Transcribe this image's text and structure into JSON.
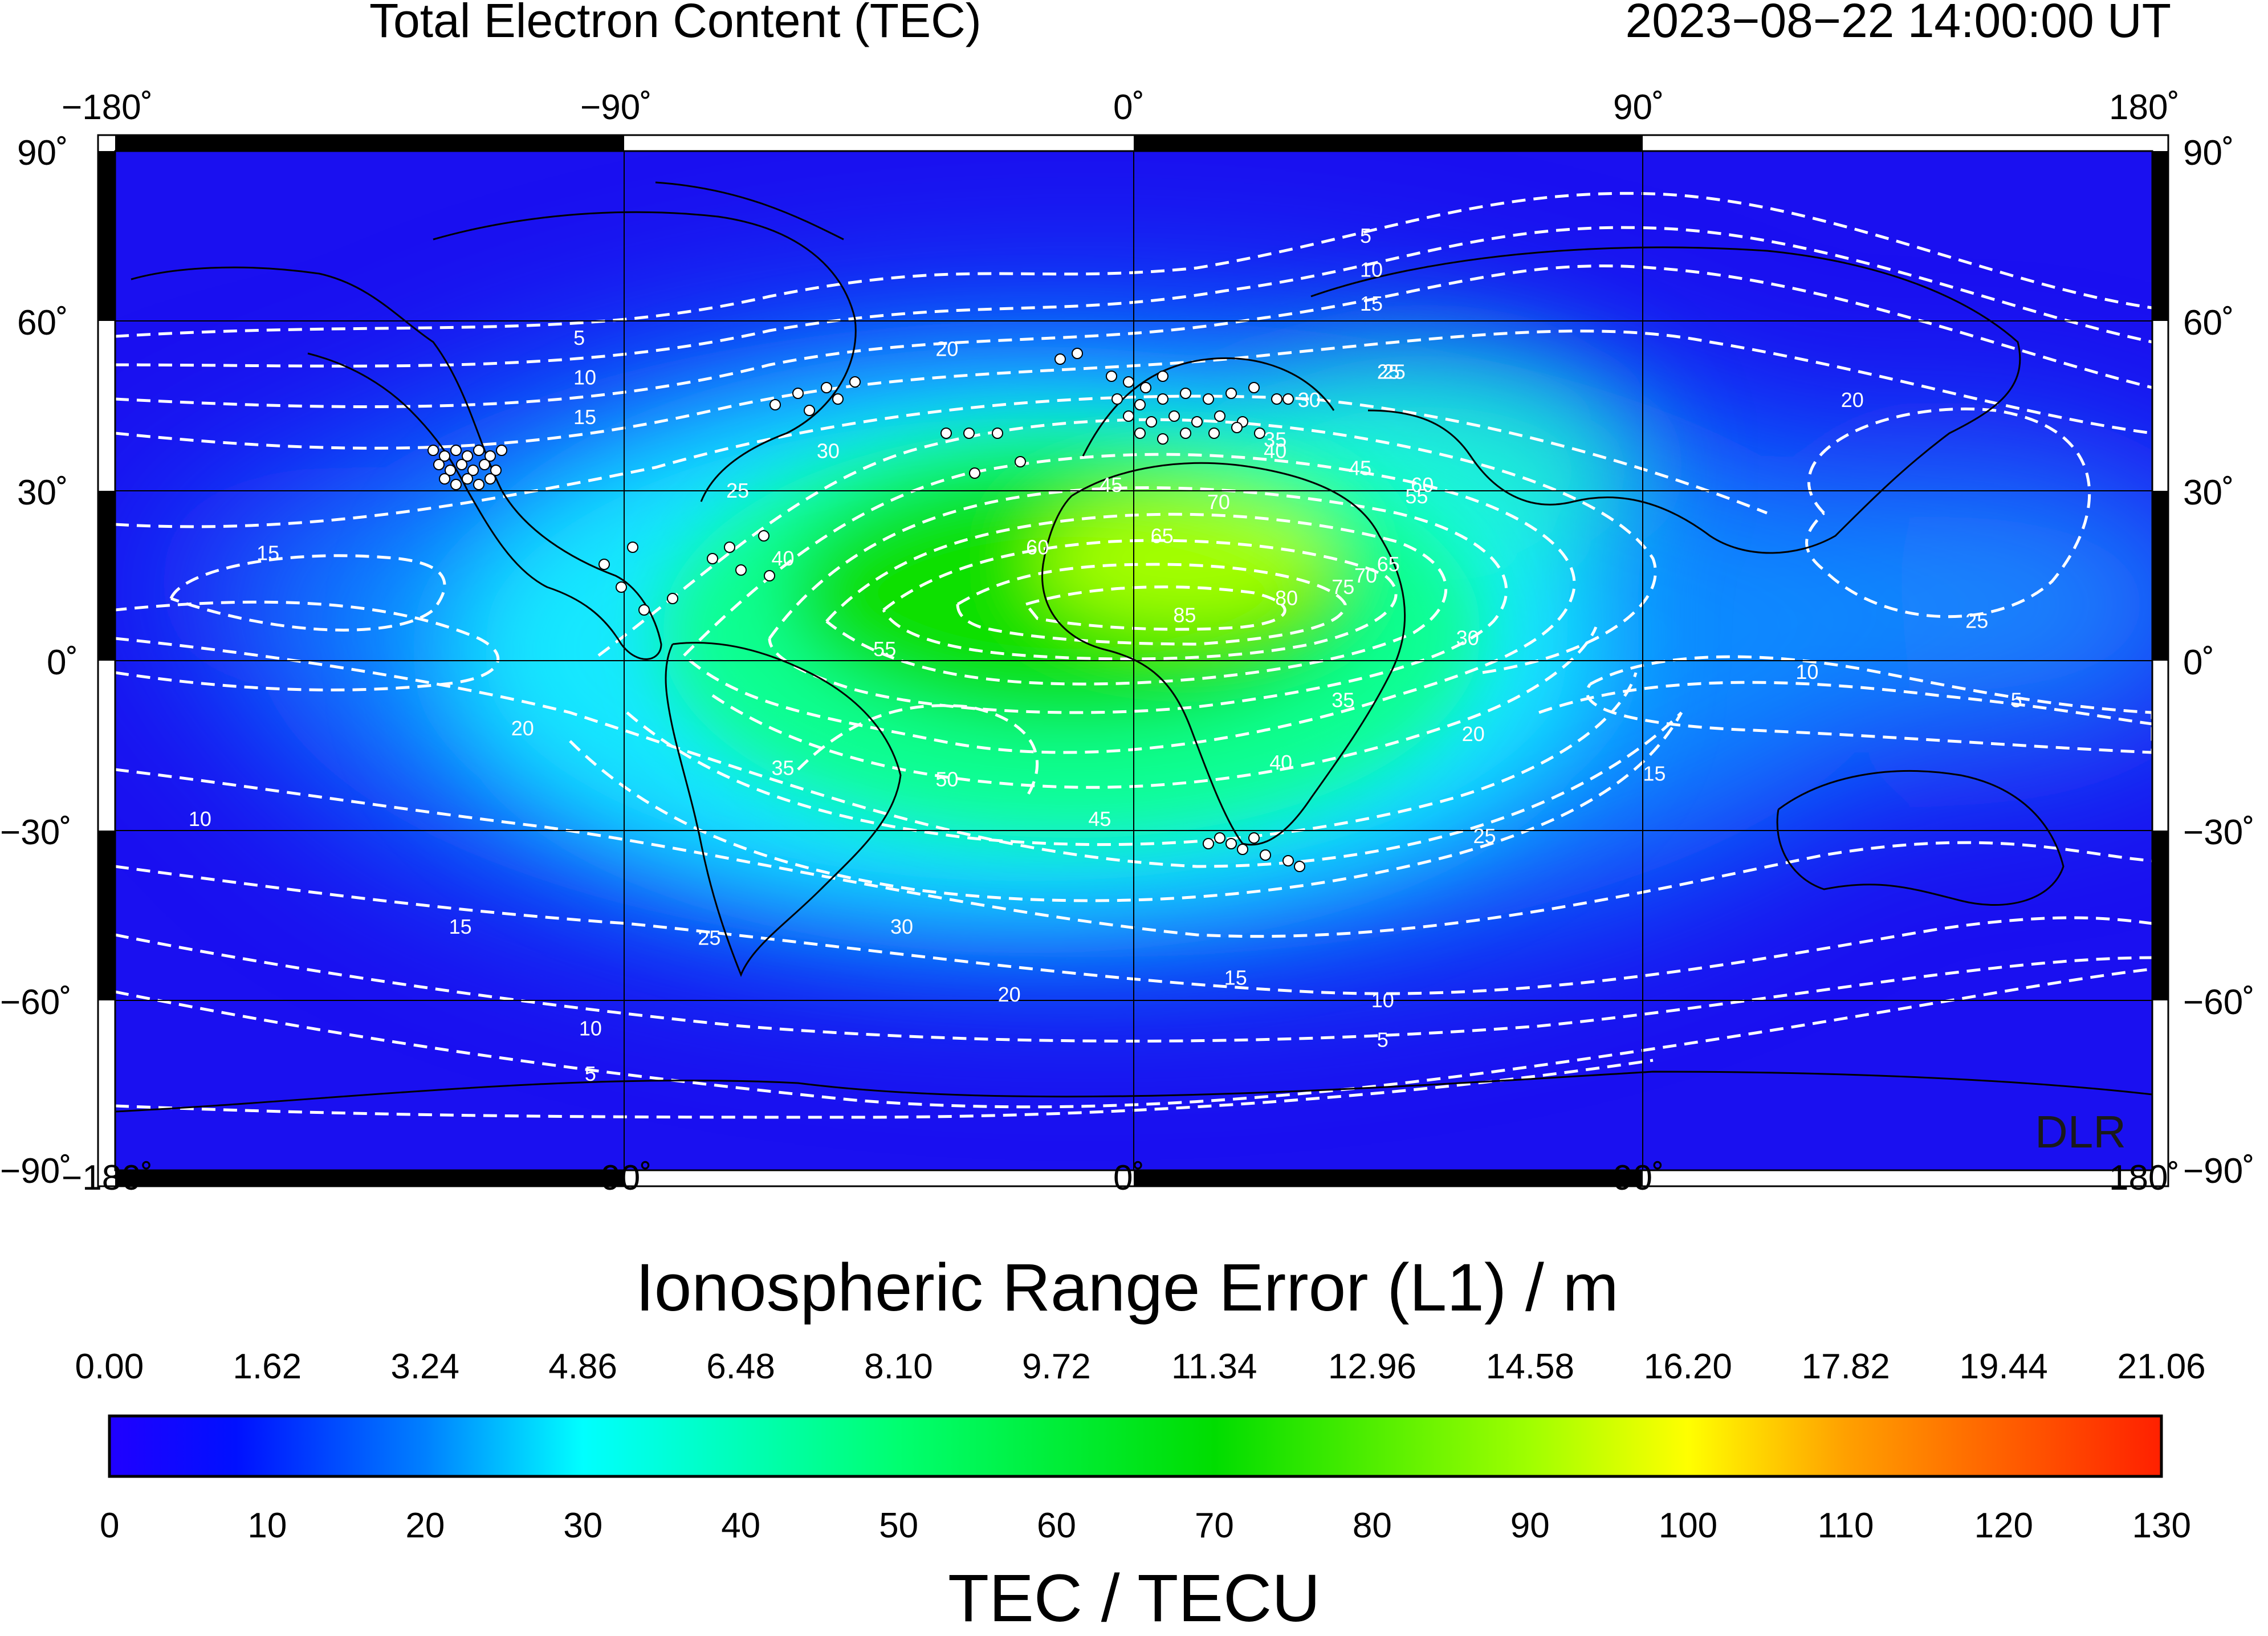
{
  "header": {
    "title": "Total Electron Content (TEC)",
    "timestamp": "2023−08−22  14:00:00 UT"
  },
  "map": {
    "lon_ticks": [
      "−180˚",
      "−90˚",
      "0˚",
      "90˚",
      "180˚"
    ],
    "lat_ticks": [
      "90˚",
      "60˚",
      "30˚",
      "0˚",
      "−30˚",
      "−60˚",
      "−90˚"
    ],
    "watermark": "DLR",
    "background_color": "#1a10f0",
    "contour_color": "#ffffff",
    "contour_labels": [
      {
        "text": "5",
        "lon": 41,
        "lat": 75
      },
      {
        "text": "10",
        "lon": 42,
        "lat": 69
      },
      {
        "text": "15",
        "lon": 42,
        "lat": 63
      },
      {
        "text": "20",
        "lon": -33,
        "lat": 55
      },
      {
        "text": "25",
        "lon": 46,
        "lat": 51
      },
      {
        "text": "5",
        "lon": -98,
        "lat": 57
      },
      {
        "text": "10",
        "lon": -97,
        "lat": 50
      },
      {
        "text": "15",
        "lon": -97,
        "lat": 43
      },
      {
        "text": "25",
        "lon": -70,
        "lat": 30
      },
      {
        "text": "30",
        "lon": -54,
        "lat": 37
      },
      {
        "text": "15",
        "lon": -153,
        "lat": 19
      },
      {
        "text": "20",
        "lon": -108,
        "lat": -12
      },
      {
        "text": "10",
        "lon": -165,
        "lat": -28
      },
      {
        "text": "15",
        "lon": -119,
        "lat": -47
      },
      {
        "text": "10",
        "lon": -96,
        "lat": -65
      },
      {
        "text": "5",
        "lon": -96,
        "lat": -73
      },
      {
        "text": "35",
        "lon": -62,
        "lat": -19
      },
      {
        "text": "55",
        "lon": -44,
        "lat": 2
      },
      {
        "text": "50",
        "lon": -33,
        "lat": -21
      },
      {
        "text": "45",
        "lon": -6,
        "lat": -28
      },
      {
        "text": "30",
        "lon": -41,
        "lat": -47
      },
      {
        "text": "25",
        "lon": -75,
        "lat": -49
      },
      {
        "text": "20",
        "lon": -22,
        "lat": -59
      },
      {
        "text": "15",
        "lon": 18,
        "lat": -56
      },
      {
        "text": "10",
        "lon": 44,
        "lat": -60
      },
      {
        "text": "5",
        "lon": 44,
        "lat": -67
      },
      {
        "text": "60",
        "lon": -17,
        "lat": 20
      },
      {
        "text": "65",
        "lon": 5,
        "lat": 22
      },
      {
        "text": "70",
        "lon": 15,
        "lat": 28
      },
      {
        "text": "80",
        "lon": 27,
        "lat": 11
      },
      {
        "text": "85",
        "lon": 9,
        "lat": 8
      },
      {
        "text": "45",
        "lon": -4,
        "lat": 31
      },
      {
        "text": "75",
        "lon": 37,
        "lat": 13
      },
      {
        "text": "70",
        "lon": 41,
        "lat": 15
      },
      {
        "text": "65",
        "lon": 45,
        "lat": 17
      },
      {
        "text": "60",
        "lon": 51,
        "lat": 31
      },
      {
        "text": "55",
        "lon": 50,
        "lat": 29
      },
      {
        "text": "45",
        "lon": 40,
        "lat": 34
      },
      {
        "text": "40",
        "lon": -62,
        "lat": 18
      },
      {
        "text": "30",
        "lon": 59,
        "lat": 4
      },
      {
        "text": "35",
        "lon": 37,
        "lat": -7
      },
      {
        "text": "40",
        "lon": 26,
        "lat": -18
      },
      {
        "text": "30",
        "lon": 31,
        "lat": 46
      },
      {
        "text": "35",
        "lon": 25,
        "lat": 39
      },
      {
        "text": "40",
        "lon": 25,
        "lat": 37
      },
      {
        "text": "20",
        "lon": 60,
        "lat": -13
      },
      {
        "text": "25",
        "lon": 62,
        "lat": -31
      },
      {
        "text": "15",
        "lon": 92,
        "lat": -20
      },
      {
        "text": "25",
        "lon": 149,
        "lat": 7
      },
      {
        "text": "10",
        "lon": 119,
        "lat": -2
      },
      {
        "text": "5",
        "lon": 156,
        "lat": -7
      },
      {
        "text": "25",
        "lon": 45,
        "lat": 51
      },
      {
        "text": "20",
        "lon": 127,
        "lat": 46
      }
    ]
  },
  "colorbar": {
    "range_label": "Ionospheric Range Error (L1) / m",
    "top_ticks": [
      "0.00",
      "1.62",
      "3.24",
      "4.86",
      "6.48",
      "8.10",
      "9.72",
      "11.34",
      "12.96",
      "14.58",
      "16.20",
      "17.82",
      "19.44",
      "21.06"
    ],
    "bottom_ticks": [
      "0",
      "10",
      "20",
      "30",
      "40",
      "50",
      "60",
      "70",
      "80",
      "90",
      "100",
      "110",
      "120",
      "130"
    ],
    "axis_label": "TEC / TECU",
    "min": 0,
    "max": 130,
    "stops": [
      {
        "value": 0,
        "color": "#2000ff"
      },
      {
        "value": 8,
        "color": "#0010ff"
      },
      {
        "value": 20,
        "color": "#0080ff"
      },
      {
        "value": 30,
        "color": "#00ffff"
      },
      {
        "value": 50,
        "color": "#00ff70"
      },
      {
        "value": 70,
        "color": "#00dd00"
      },
      {
        "value": 90,
        "color": "#a0ff00"
      },
      {
        "value": 100,
        "color": "#ffff00"
      },
      {
        "value": 110,
        "color": "#ffa000"
      },
      {
        "value": 130,
        "color": "#ff2000"
      }
    ]
  }
}
